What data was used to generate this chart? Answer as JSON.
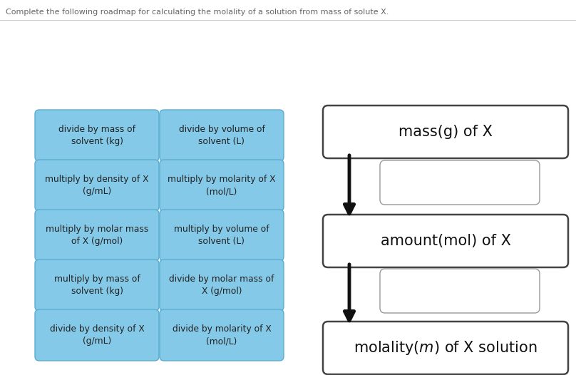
{
  "title": "Complete the following roadmap for calculating the molality of a solution from mass of solute X.",
  "title_fontsize": 8.0,
  "title_color": "#666666",
  "bg_color": "#ffffff",
  "blue_box_color": "#85c9e8",
  "blue_box_edge": "#5aadd0",
  "white_box_color": "#ffffff",
  "white_box_edge": "#999999",
  "bold_box_edge": "#444444",
  "left_boxes": [
    [
      "divide by mass of\nsolvent (kg)",
      "divide by volume of\nsolvent (L)"
    ],
    [
      "multiply by density of X\n(g/mL)",
      "multiply by molarity of X\n(mol/L)"
    ],
    [
      "multiply by molar mass\nof X (g/mol)",
      "multiply by volume of\nsolvent (L)"
    ],
    [
      "multiply by mass of\nsolvent (kg)",
      "divide by molar mass of\nX (g/mol)"
    ],
    [
      "divide by density of X\n(g/mL)",
      "divide by molarity of X\n(mol/L)"
    ]
  ],
  "fig_width": 8.08,
  "fig_height": 5.26,
  "dpi": 100
}
